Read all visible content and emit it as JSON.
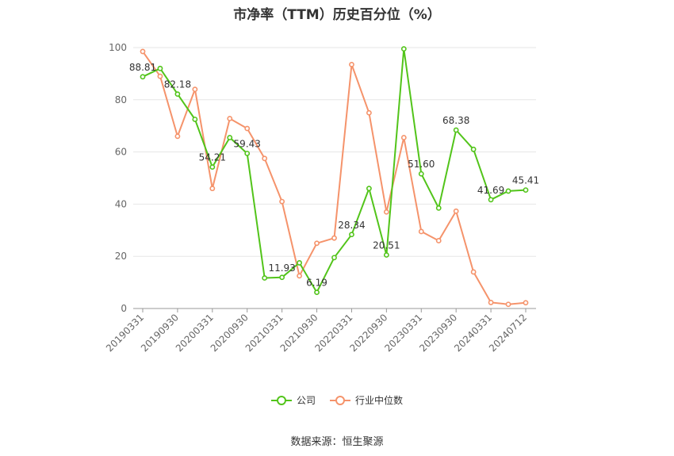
{
  "chart_data": {
    "type": "line",
    "title": "市净率（TTM）历史百分位（%）",
    "x": [
      "20190331",
      "20190630",
      "20190930",
      "20191231",
      "20200331",
      "20200630",
      "20200930",
      "20201231",
      "20210331",
      "20210630",
      "20210930",
      "20211231",
      "20220331",
      "20220630",
      "20220930",
      "20221231",
      "20230331",
      "20230630",
      "20230930",
      "20231231",
      "20240331",
      "20240630",
      "20240712"
    ],
    "xtick_labels": [
      "20190331",
      "20190930",
      "20200331",
      "20200930",
      "20210331",
      "20210930",
      "20220331",
      "20220930",
      "20230331",
      "20230930",
      "20240331",
      "20240712"
    ],
    "ylim": [
      0,
      100
    ],
    "yticks": [
      0,
      20,
      40,
      60,
      80,
      100
    ],
    "grid": true,
    "legend_position": "bottom",
    "series": [
      {
        "name": "公司",
        "color": "#52c41a",
        "values": [
          88.81,
          92.0,
          82.18,
          72.5,
          54.21,
          65.5,
          59.43,
          11.7,
          11.93,
          17.5,
          6.19,
          19.5,
          28.34,
          46.0,
          20.51,
          99.5,
          51.6,
          38.5,
          68.38,
          61.0,
          41.69,
          45.0,
          45.41
        ],
        "labels": {
          "0": "88.81",
          "2": "82.18",
          "4": "54.21",
          "6": "59.43",
          "8": "11.93",
          "10": "6.19",
          "12": "28.34",
          "14": "20.51",
          "16": "51.60",
          "18": "68.38",
          "20": "41.69",
          "22": "45.41"
        }
      },
      {
        "name": "行业中位数",
        "color": "#f5936b",
        "values": [
          98.5,
          89.0,
          66.0,
          84.0,
          46.0,
          72.8,
          69.0,
          57.5,
          41.0,
          12.5,
          25.0,
          27.0,
          93.5,
          75.0,
          37.0,
          65.5,
          29.5,
          26.0,
          37.3,
          14.0,
          2.3,
          1.6,
          2.2
        ]
      }
    ]
  },
  "source_text": "数据来源：恒生聚源"
}
